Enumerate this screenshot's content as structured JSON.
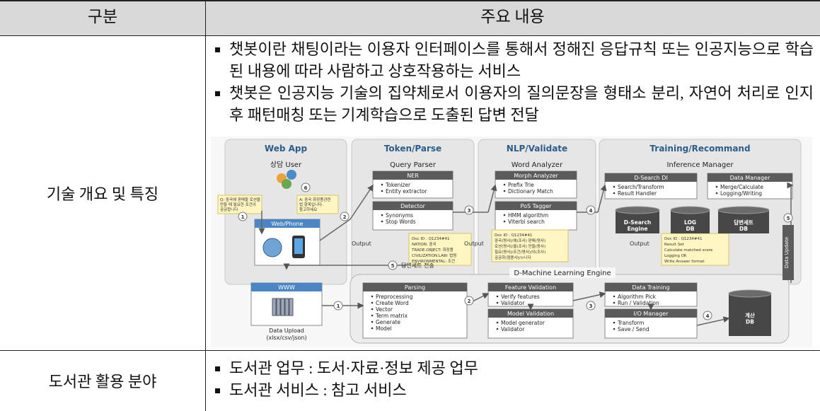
{
  "header": [
    "구분",
    "주요 내용"
  ],
  "rows": [
    {
      "label": "기술 개요 및 특징",
      "bullets": [
        "챗봇이란 채팅이라는 이용자 인터페이스를 통해서 정해진 응답규칙 또는 인공지능으로 학습된 내용에 따라 사람하고 상호작용하는 서비스",
        "챗봇은 인공지능 기술의 집약체로서 이용자의 질의문장을 형태소 분리, 자연어 처리로 인지 후 패턴매칭 또는 기계학습으로 도출된 답변 전달"
      ]
    },
    {
      "label": "도서관 활용 분야",
      "bullets": [
        "도서관 업무 : 도서·자료·정보 제공 업무",
        "도서관 서비스 : 참고 서비스"
      ]
    }
  ],
  "diagram": {
    "panels": [
      {
        "title": "Web App",
        "subtitle": "상담 User"
      },
      {
        "title": "Token/Parse",
        "subtitle": "Query Parser"
      },
      {
        "title": "NLP/Validate",
        "subtitle": "Word Analyzer"
      },
      {
        "title": "Training/Recommand",
        "subtitle": "Inference Manager"
      }
    ],
    "boxes": [
      {
        "title": "Web/Phone"
      },
      {
        "title": "NER",
        "items": [
          "Tokenizer",
          "Entity extractor"
        ]
      },
      {
        "title": "Detector",
        "items": [
          "Synonyms",
          "Stop Words"
        ]
      },
      {
        "title": "Morph Analyzer",
        "items": [
          "Prefix Trie",
          "Dictionary Match"
        ]
      },
      {
        "title": "PoS Tagger",
        "items": [
          "HMM algorithm",
          "Viterbi search"
        ]
      },
      {
        "title": "D-Search DI",
        "items": [
          "Search/Transform",
          "Result Handler"
        ]
      },
      {
        "title": "Data Manager",
        "items": [
          "Merge/Calculate",
          "Logging/Writing"
        ]
      },
      {
        "title": "WWW"
      },
      {
        "title": "Parsing",
        "items": [
          "Preprocessing",
          "Create Word",
          "Vector",
          "Term matrix",
          "Generate",
          "Model"
        ]
      },
      {
        "title": "Feature Validation",
        "items": [
          "Verify features",
          "Validator"
        ]
      },
      {
        "title": "Model Validation",
        "items": [
          "Model generator",
          "Validator"
        ]
      },
      {
        "title": "Data Training",
        "items": [
          "Algorithm Pick",
          "Run / Validation"
        ]
      },
      {
        "title": "I/O Manager",
        "items": [
          "Transform",
          "Save / Send"
        ]
      }
    ],
    "bubbles": [
      [
        "Q: 중국에 판매할 로션을",
        "만들 때 필요한 조건이",
        "궁금합니다"
      ],
      [
        "A: 중국 화장품관련",
        "법 항목입니다.",
        "참고하세요"
      ]
    ],
    "notes": [
      [
        "Doc ID : Q1234#41",
        "NATION: 중국",
        "TRADE.OBJECT: 화장품",
        "CIVILIZATION.LAW: 법령",
        "ENVIRONMENTAL: 조건"
      ],
      [
        "Doc ID : Q1234#41",
        "중국(명사)/에(조사) 판매(명사)",
        "로션(명사)/을(조사) 만들(동사)",
        "필요(명사)/조건(명사)/이(조사)",
        "궁금하(형용사)/ㅂ니다"
      ],
      [
        "Doc ID : Q1234#41",
        "Result Set",
        "Calculate matched score",
        "Logging OK",
        "Write Answer format"
      ]
    ],
    "outputs": [
      "Output",
      "Output",
      "Output"
    ],
    "cylinders": [
      [
        "D-Search",
        "Engine"
      ],
      [
        "LOG",
        "DB"
      ],
      [
        "답변세트",
        "DB"
      ],
      [
        "계산",
        "DB"
      ]
    ],
    "engine_title": "D-Machine Learning Engine",
    "transfer_label": "답변세트 전송",
    "data_update": "Data Update",
    "upload_label": [
      "Data Upload",
      "(xlsx/csv/json)"
    ],
    "steps": [
      "1",
      "6",
      "2",
      "3",
      "4",
      "5",
      "5",
      "1",
      "2",
      "3",
      "4"
    ]
  }
}
